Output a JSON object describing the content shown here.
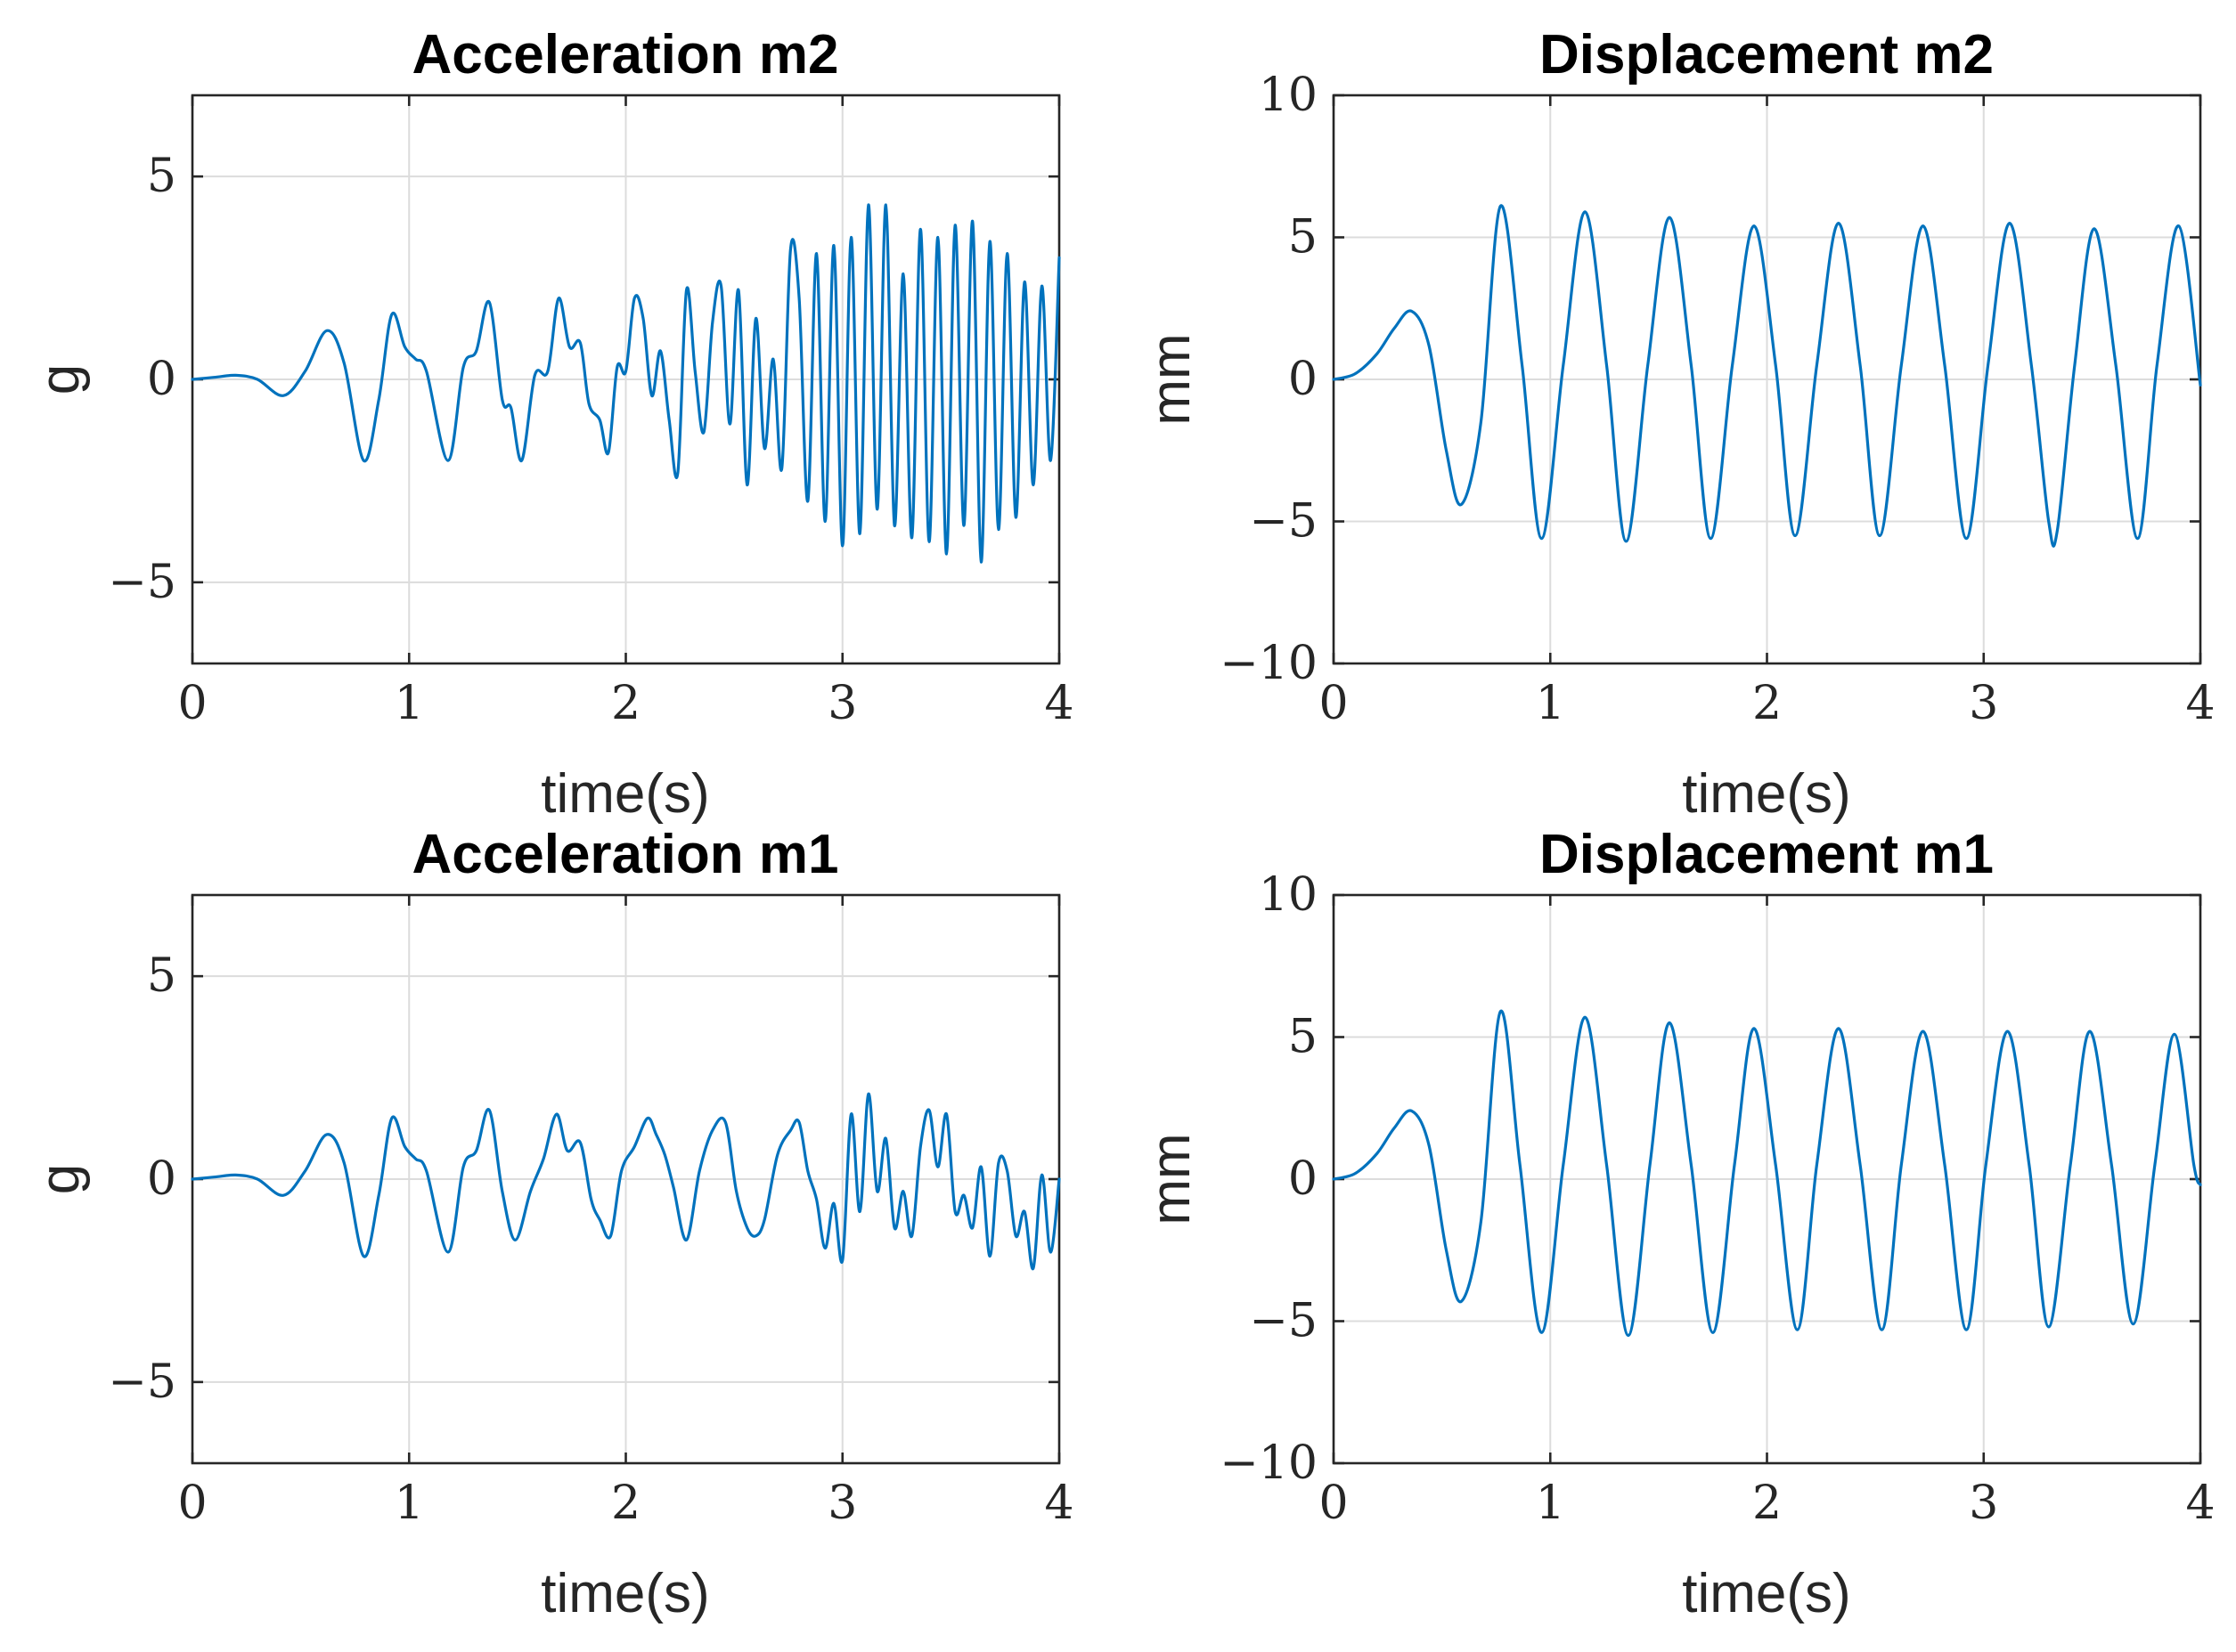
{
  "colors": {
    "series": "#0072BD",
    "axis": "#262626",
    "grid": "#dcdcdc"
  },
  "chart_data": [
    {
      "type": "line",
      "title": "Acceleration m2",
      "xlabel": "time(s)",
      "ylabel": "g",
      "xlim": [
        0,
        4
      ],
      "ylim": [
        -7,
        7
      ],
      "xticks": [
        0,
        1,
        2,
        3,
        4
      ],
      "xtick_labels": [
        "0",
        "1",
        "2",
        "3",
        "4"
      ],
      "yticks": [
        -5,
        0,
        5
      ],
      "ytick_labels": [
        "−5",
        "0",
        "5"
      ],
      "grid": true,
      "series": [
        {
          "name": "Acceleration m2",
          "x": [
            0,
            0.1,
            0.2,
            0.3,
            0.42,
            0.52,
            0.62,
            0.7,
            0.79,
            0.86,
            0.92,
            0.98,
            1.03,
            1.08,
            1.18,
            1.25,
            1.31,
            1.37,
            1.43,
            1.47,
            1.52,
            1.58,
            1.64,
            1.69,
            1.74,
            1.79,
            1.83,
            1.88,
            1.92,
            1.96,
            2.0,
            2.04,
            2.08,
            2.12,
            2.16,
            2.2,
            2.24,
            2.28,
            2.32,
            2.36,
            2.4,
            2.44,
            2.48,
            2.52,
            2.56,
            2.6,
            2.64,
            2.68,
            2.72,
            2.76,
            2.8,
            2.84,
            2.88,
            2.92,
            2.96,
            3.0,
            3.04,
            3.08,
            3.12,
            3.16,
            3.2,
            3.24,
            3.28,
            3.32,
            3.36,
            3.4,
            3.44,
            3.48,
            3.52,
            3.56,
            3.6,
            3.64,
            3.68,
            3.72,
            3.76,
            3.8,
            3.84,
            3.88,
            3.92,
            3.96,
            4.0
          ],
          "y": [
            0,
            0.05,
            0.1,
            0.0,
            -0.4,
            0.2,
            1.2,
            0.4,
            -2.0,
            -0.5,
            1.6,
            0.8,
            0.5,
            0.2,
            -2.0,
            0.3,
            0.7,
            1.9,
            -0.5,
            -0.7,
            -2.0,
            0.1,
            0.2,
            2.0,
            0.8,
            0.9,
            -0.6,
            -1.0,
            -1.8,
            0.3,
            0.2,
            2.0,
            1.5,
            -0.4,
            0.7,
            -1.0,
            -2.3,
            2.2,
            0.2,
            -1.3,
            1.4,
            2.3,
            -1.1,
            2.2,
            -2.6,
            1.5,
            -1.7,
            0.5,
            -2.2,
            3.2,
            2.0,
            -3.0,
            3.1,
            -3.5,
            3.3,
            -4.1,
            3.5,
            -3.8,
            4.3,
            -3.2,
            4.3,
            -3.6,
            2.6,
            -3.9,
            3.7,
            -4.0,
            3.5,
            -4.3,
            3.8,
            -3.6,
            3.9,
            -4.5,
            3.4,
            -3.7,
            3.1,
            -3.4,
            2.4,
            -2.6,
            2.3,
            -2.0,
            3.0
          ]
        }
      ]
    },
    {
      "type": "line",
      "title": "Displacement m2",
      "xlabel": "time(s)",
      "ylabel": "mm",
      "xlim": [
        0,
        4
      ],
      "ylim": [
        -10,
        10
      ],
      "xticks": [
        0,
        1,
        2,
        3,
        4
      ],
      "xtick_labels": [
        "0",
        "1",
        "2",
        "3",
        "4"
      ],
      "yticks": [
        -10,
        -5,
        0,
        5,
        10
      ],
      "ytick_labels": [
        "−10",
        "−5",
        "0",
        "5",
        "10"
      ],
      "grid": true,
      "series": [
        {
          "name": "Displacement m2",
          "x": [
            0,
            0.1,
            0.2,
            0.28,
            0.36,
            0.44,
            0.52,
            0.59,
            0.68,
            0.77,
            0.87,
            0.96,
            1.06,
            1.16,
            1.26,
            1.35,
            1.45,
            1.55,
            1.65,
            1.74,
            1.84,
            1.94,
            2.04,
            2.13,
            2.23,
            2.33,
            2.43,
            2.52,
            2.62,
            2.72,
            2.82,
            2.92,
            3.02,
            3.12,
            3.22,
            3.3,
            3.34,
            3.42,
            3.51,
            3.61,
            3.71,
            3.8,
            3.9,
            4.0
          ],
          "y": [
            0,
            0.2,
            0.9,
            1.8,
            2.4,
            1.2,
            -2.5,
            -4.4,
            -1.5,
            6.1,
            0.5,
            -5.6,
            0.5,
            5.9,
            0.5,
            -5.7,
            0.5,
            5.7,
            0.5,
            -5.6,
            0.5,
            5.4,
            0.5,
            -5.5,
            0.5,
            5.5,
            0.5,
            -5.5,
            0.5,
            5.4,
            0.5,
            -5.6,
            0.5,
            5.5,
            0.5,
            -5.0,
            -5.3,
            0.5,
            5.3,
            0.5,
            -5.6,
            0.5,
            5.4,
            -0.2
          ]
        }
      ]
    },
    {
      "type": "line",
      "title": "Acceleration m1",
      "xlabel": "time(s)",
      "ylabel": "g",
      "xlim": [
        0,
        4
      ],
      "ylim": [
        -7,
        7
      ],
      "xticks": [
        0,
        1,
        2,
        3,
        4
      ],
      "xtick_labels": [
        "0",
        "1",
        "2",
        "3",
        "4"
      ],
      "yticks": [
        -5,
        0,
        5
      ],
      "ytick_labels": [
        "−5",
        "0",
        "5"
      ],
      "grid": true,
      "series": [
        {
          "name": "Acceleration m1",
          "x": [
            0,
            0.1,
            0.2,
            0.3,
            0.42,
            0.52,
            0.62,
            0.7,
            0.79,
            0.86,
            0.92,
            0.98,
            1.03,
            1.08,
            1.18,
            1.25,
            1.31,
            1.37,
            1.43,
            1.49,
            1.56,
            1.62,
            1.68,
            1.73,
            1.79,
            1.84,
            1.88,
            1.93,
            1.98,
            2.04,
            2.1,
            2.14,
            2.18,
            2.22,
            2.28,
            2.34,
            2.4,
            2.46,
            2.51,
            2.56,
            2.6,
            2.64,
            2.7,
            2.76,
            2.8,
            2.84,
            2.88,
            2.92,
            2.96,
            3.0,
            3.04,
            3.08,
            3.12,
            3.16,
            3.2,
            3.24,
            3.28,
            3.32,
            3.36,
            3.4,
            3.44,
            3.48,
            3.52,
            3.56,
            3.6,
            3.64,
            3.68,
            3.72,
            3.76,
            3.8,
            3.84,
            3.88,
            3.92,
            3.96,
            4.0
          ],
          "y": [
            0,
            0.05,
            0.1,
            0.0,
            -0.4,
            0.2,
            1.1,
            0.4,
            -1.9,
            -0.4,
            1.5,
            0.8,
            0.5,
            0.2,
            -1.8,
            0.3,
            0.7,
            1.7,
            -0.3,
            -1.5,
            -0.3,
            0.5,
            1.6,
            0.7,
            0.9,
            -0.5,
            -1.0,
            -1.4,
            0.2,
            0.8,
            1.5,
            1.1,
            0.6,
            -0.2,
            -1.5,
            0.2,
            1.2,
            1.4,
            -0.3,
            -1.2,
            -1.4,
            -1.0,
            0.6,
            1.2,
            1.4,
            0.2,
            -0.5,
            -1.7,
            -0.6,
            -2.0,
            1.6,
            -0.8,
            2.1,
            -0.3,
            1.0,
            -1.2,
            -0.3,
            -1.4,
            0.8,
            1.7,
            0.3,
            1.6,
            -0.8,
            -0.4,
            -1.2,
            0.3,
            -1.9,
            0.4,
            0.2,
            -1.4,
            -0.8,
            -2.2,
            0.1,
            -1.8,
            0.0
          ]
        }
      ]
    },
    {
      "type": "line",
      "title": "Displacement m1",
      "xlabel": "time(s)",
      "ylabel": "mm",
      "xlim": [
        0,
        4
      ],
      "ylim": [
        -10,
        10
      ],
      "xticks": [
        0,
        1,
        2,
        3,
        4
      ],
      "xtick_labels": [
        "0",
        "1",
        "2",
        "3",
        "4"
      ],
      "yticks": [
        -10,
        -5,
        0,
        5,
        10
      ],
      "ytick_labels": [
        "−10",
        "−5",
        "0",
        "5",
        "10"
      ],
      "grid": true,
      "series": [
        {
          "name": "Displacement m1",
          "x": [
            0,
            0.1,
            0.2,
            0.28,
            0.36,
            0.44,
            0.52,
            0.59,
            0.68,
            0.77,
            0.86,
            0.96,
            1.06,
            1.16,
            1.26,
            1.36,
            1.46,
            1.55,
            1.65,
            1.75,
            1.85,
            1.94,
            2.04,
            2.14,
            2.23,
            2.33,
            2.43,
            2.53,
            2.62,
            2.72,
            2.82,
            2.92,
            3.01,
            3.11,
            3.21,
            3.3,
            3.4,
            3.49,
            3.59,
            3.69,
            3.79,
            3.88,
            3.97,
            4.0
          ],
          "y": [
            0,
            0.2,
            0.9,
            1.8,
            2.4,
            1.2,
            -2.5,
            -4.3,
            -1.5,
            5.9,
            0.5,
            -5.4,
            0.5,
            5.7,
            0.5,
            -5.5,
            0.5,
            5.5,
            0.5,
            -5.4,
            0.5,
            5.3,
            0.5,
            -5.3,
            0.5,
            5.3,
            0.5,
            -5.3,
            0.5,
            5.2,
            0.5,
            -5.3,
            0.5,
            5.2,
            0.5,
            -5.2,
            0.5,
            5.2,
            0.5,
            -5.1,
            0.5,
            5.1,
            0.5,
            -0.2
          ]
        }
      ]
    }
  ]
}
